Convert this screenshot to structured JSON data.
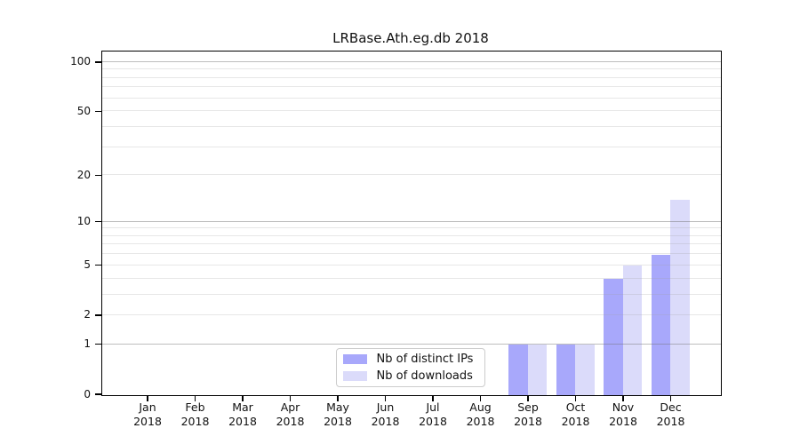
{
  "chart_data": {
    "type": "bar",
    "title": "LRBase.Ath.eg.db 2018",
    "categories": [
      "Jan",
      "Feb",
      "Mar",
      "Apr",
      "May",
      "Jun",
      "Jul",
      "Aug",
      "Sep",
      "Oct",
      "Nov",
      "Dec"
    ],
    "x_tick_year_line": "2018",
    "series": [
      {
        "name": "Nb of distinct IPs",
        "color": "#a8a8fb",
        "values": [
          0,
          0,
          0,
          0,
          0,
          0,
          0,
          0,
          1,
          1,
          4,
          6
        ]
      },
      {
        "name": "Nb of downloads",
        "color": "#dbdbfa",
        "values": [
          0,
          0,
          0,
          0,
          0,
          0,
          0,
          0,
          1,
          1,
          5,
          14
        ]
      }
    ],
    "y_axis": {
      "scale": "log1p",
      "ticks": [
        0,
        1,
        2,
        5,
        10,
        20,
        50,
        100
      ],
      "minor_gridlines": [
        3,
        4,
        6,
        7,
        8,
        9,
        30,
        40,
        60,
        70,
        80,
        90
      ],
      "emphasized_gridlines": [
        1,
        10,
        100
      ],
      "range": [
        0,
        116
      ]
    },
    "legend": {
      "position": "lower center"
    },
    "grid": true
  }
}
